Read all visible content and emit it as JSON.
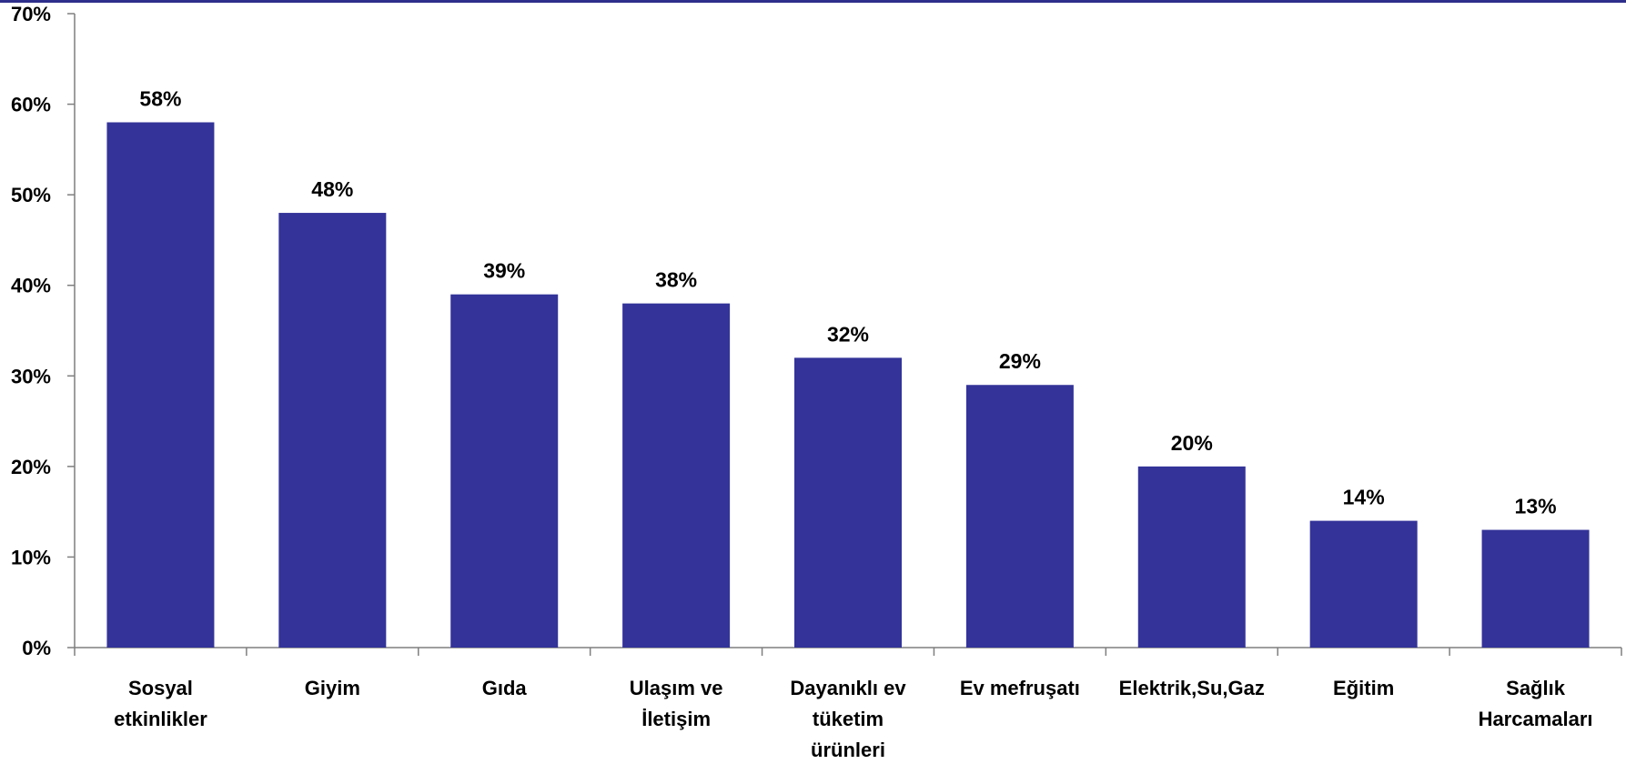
{
  "chart_data": {
    "type": "bar",
    "categories": [
      [
        "Sosyal",
        "etkinlikler"
      ],
      [
        "Giyim"
      ],
      [
        "Gıda"
      ],
      [
        "Ulaşım ve",
        "İletişim"
      ],
      [
        "Dayanıklı ev",
        "tüketim",
        "ürünleri"
      ],
      [
        "Ev mefruşatı"
      ],
      [
        "Elektrik,Su,Gaz"
      ],
      [
        "Eğitim"
      ],
      [
        "Sağlık",
        "Harcamaları"
      ]
    ],
    "values": [
      58,
      48,
      39,
      38,
      32,
      29,
      20,
      14,
      13
    ],
    "value_labels": [
      "58%",
      "48%",
      "39%",
      "38%",
      "32%",
      "29%",
      "20%",
      "14%",
      "13%"
    ],
    "ylim": [
      0,
      70
    ],
    "y_ticks": [
      0,
      10,
      20,
      30,
      40,
      50,
      60,
      70
    ],
    "y_tick_labels": [
      "0%",
      "10%",
      "20%",
      "30%",
      "40%",
      "50%",
      "60%",
      "70%"
    ],
    "title": "",
    "xlabel": "",
    "ylabel": "",
    "grid": false,
    "legend": "none",
    "bar_color": "#333399",
    "top_rule_color": "#2E2E8C"
  }
}
